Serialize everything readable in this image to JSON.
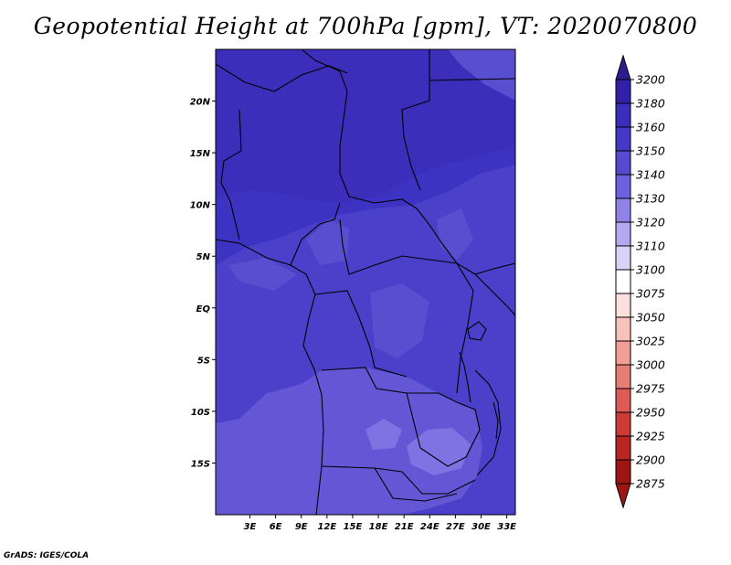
{
  "title": "Geopotential Height at 700hPa [gpm], VT: 2020070800",
  "credit": "GrADS: IGES/COLA",
  "map": {
    "lon_range": [
      -1,
      34
    ],
    "lat_range": [
      -20,
      25
    ],
    "lon_ticks": [
      {
        "value": 3,
        "label": "3E"
      },
      {
        "value": 6,
        "label": "6E"
      },
      {
        "value": 9,
        "label": "9E"
      },
      {
        "value": 12,
        "label": "12E"
      },
      {
        "value": 15,
        "label": "15E"
      },
      {
        "value": 18,
        "label": "18E"
      },
      {
        "value": 21,
        "label": "21E"
      },
      {
        "value": 24,
        "label": "24E"
      },
      {
        "value": 27,
        "label": "27E"
      },
      {
        "value": 30,
        "label": "30E"
      },
      {
        "value": 33,
        "label": "33E"
      }
    ],
    "lat_ticks": [
      {
        "value": 20,
        "label": "20N"
      },
      {
        "value": 15,
        "label": "15N"
      },
      {
        "value": 10,
        "label": "10N"
      },
      {
        "value": 5,
        "label": "5N"
      },
      {
        "value": 0,
        "label": "EQ"
      },
      {
        "value": -5,
        "label": "5S"
      },
      {
        "value": -10,
        "label": "10S"
      },
      {
        "value": -15,
        "label": "15S"
      }
    ]
  },
  "colorbar": {
    "levels": [
      "3200",
      "3180",
      "3160",
      "3150",
      "3140",
      "3130",
      "3120",
      "3110",
      "3100",
      "3075",
      "3050",
      "3025",
      "3000",
      "2975",
      "2950",
      "2925",
      "2900",
      "2875"
    ],
    "colors": [
      "#2b1d8e",
      "#3320a8",
      "#3a2fbc",
      "#4339c6",
      "#564ad1",
      "#6e60de",
      "#8f83ea",
      "#b2a9f1",
      "#d8d4f8",
      "#ffffff",
      "#fde0dc",
      "#f9c1bb",
      "#f29f98",
      "#e77e76",
      "#dc5c55",
      "#cd3b36",
      "#b92522",
      "#9e1614"
    ]
  },
  "colors": {
    "ocean": "#3d33c3",
    "north_land": "#3a2ebb",
    "central_land": "#4a40c9",
    "southern_land": "#6457d6",
    "light_patch": "#7f72e2",
    "faint_patch": "#5a4ed0",
    "boundary": "#000000"
  }
}
